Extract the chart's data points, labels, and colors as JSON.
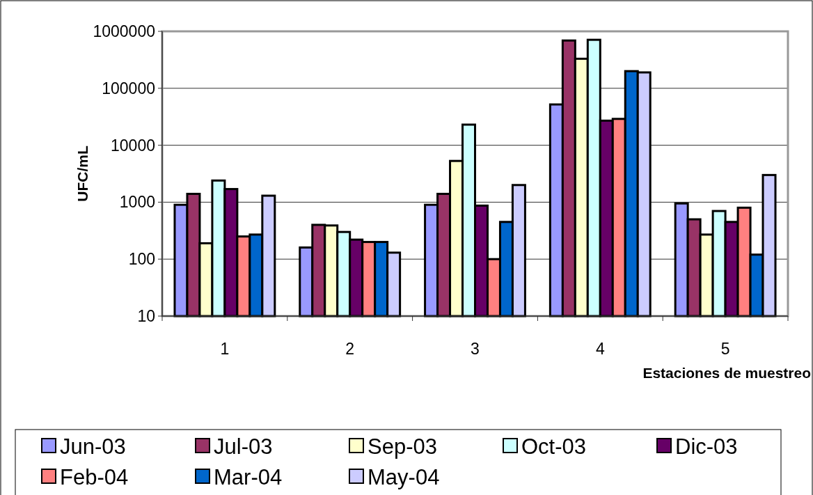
{
  "chart_data": {
    "type": "bar",
    "xlabel": "Estaciones de muestreo",
    "ylabel": "UFC/mL",
    "categories": [
      "1",
      "2",
      "3",
      "4",
      "5"
    ],
    "log": true,
    "ylim": [
      10,
      1000000
    ],
    "yticks": [
      10,
      100,
      1000,
      10000,
      100000,
      1000000
    ],
    "grid": "y",
    "legend": "bottom",
    "series": [
      {
        "name": "Jun-03",
        "color": "#9999ff",
        "values": [
          900,
          160,
          900,
          52000,
          950
        ]
      },
      {
        "name": "Jul-03",
        "color": "#993366",
        "values": [
          1400,
          400,
          1400,
          690000,
          500
        ]
      },
      {
        "name": "Sep-03",
        "color": "#ffffcc",
        "values": [
          190,
          390,
          5300,
          330000,
          270
        ]
      },
      {
        "name": "Oct-03",
        "color": "#ccffff",
        "values": [
          2400,
          300,
          23000,
          710000,
          700
        ]
      },
      {
        "name": "Dic-03",
        "color": "#660066",
        "values": [
          1700,
          220,
          870,
          27000,
          450
        ]
      },
      {
        "name": "Feb-04",
        "color": "#ff8080",
        "values": [
          250,
          200,
          100,
          29000,
          800
        ]
      },
      {
        "name": "Mar-04",
        "color": "#0066cc",
        "values": [
          270,
          200,
          450,
          200000,
          120
        ]
      },
      {
        "name": "May-04",
        "color": "#ccccff",
        "values": [
          1300,
          130,
          2000,
          190000,
          3000
        ]
      }
    ]
  }
}
